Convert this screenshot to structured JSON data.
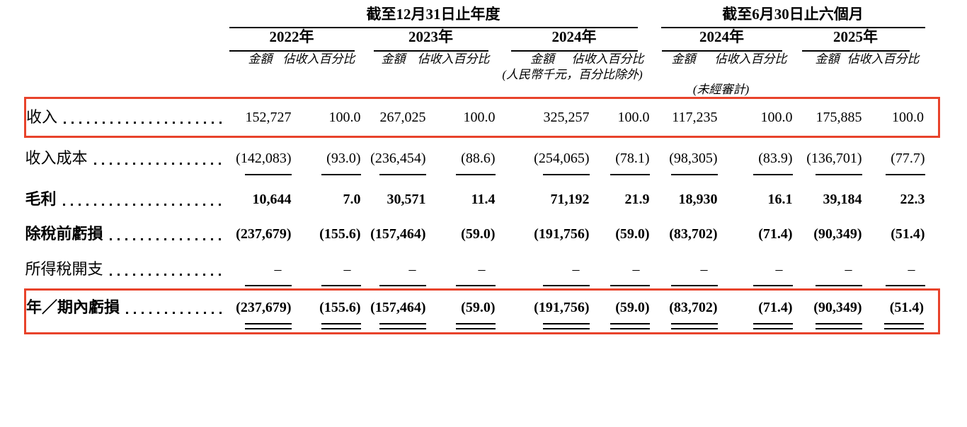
{
  "colors": {
    "highlight_box": "#e8432b",
    "text": "#000000"
  },
  "table": {
    "period_groups": [
      {
        "label": "截至12月31日止年度",
        "years": [
          "2022年",
          "2023年",
          "2024年"
        ]
      },
      {
        "label": "截至6月30日止六個月",
        "years": [
          "2024年",
          "2025年"
        ]
      }
    ],
    "column_headers": {
      "amount": "金額",
      "percent_of_revenue": "佔收入百分比"
    },
    "unit_note": "(人民幣千元，百分比除外)",
    "unaudited_note": "(未經審計)",
    "rows": [
      {
        "label": "收入",
        "bold": false,
        "highlight": true,
        "underline": "none",
        "values": [
          "152,727",
          "100.0",
          "267,025",
          "100.0",
          "325,257",
          "100.0",
          "117,235",
          "100.0",
          "175,885",
          "100.0"
        ]
      },
      {
        "label": "收入成本",
        "bold": false,
        "highlight": false,
        "underline": "single",
        "values": [
          "(142,083)",
          "(93.0)",
          "(236,454)",
          "(88.6)",
          "(254,065)",
          "(78.1)",
          "(98,305)",
          "(83.9)",
          "(136,701)",
          "(77.7)"
        ]
      },
      {
        "label": "毛利",
        "bold": true,
        "highlight": false,
        "underline": "none",
        "values": [
          "10,644",
          "7.0",
          "30,571",
          "11.4",
          "71,192",
          "21.9",
          "18,930",
          "16.1",
          "39,184",
          "22.3"
        ]
      },
      {
        "label": "除稅前虧損",
        "bold": true,
        "highlight": false,
        "underline": "none",
        "values": [
          "(237,679)",
          "(155.6)",
          "(157,464)",
          "(59.0)",
          "(191,756)",
          "(59.0)",
          "(83,702)",
          "(71.4)",
          "(90,349)",
          "(51.4)"
        ]
      },
      {
        "label": "所得稅開支",
        "bold": false,
        "highlight": false,
        "underline": "single",
        "values": [
          "–",
          "–",
          "–",
          "–",
          "–",
          "–",
          "–",
          "–",
          "–",
          "–"
        ]
      },
      {
        "label": "年／期內虧損",
        "bold": true,
        "highlight": true,
        "underline": "double",
        "values": [
          "(237,679)",
          "(155.6)",
          "(157,464)",
          "(59.0)",
          "(191,756)",
          "(59.0)",
          "(83,702)",
          "(71.4)",
          "(90,349)",
          "(51.4)"
        ]
      }
    ]
  }
}
